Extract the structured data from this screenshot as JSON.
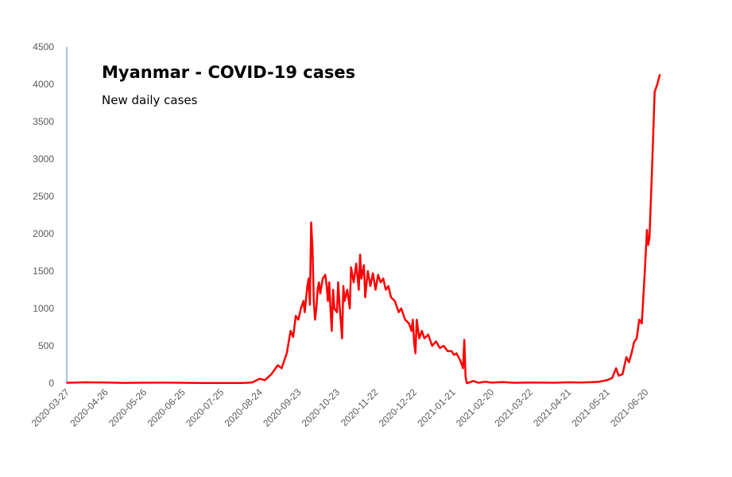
{
  "chart_data": {
    "type": "line",
    "title": "Myanmar - COVID-19 cases",
    "subtitle": "New daily cases",
    "xlabel": "",
    "ylabel": "",
    "ylim": [
      0,
      4500
    ],
    "yticks": [
      0,
      500,
      1000,
      1500,
      2000,
      2500,
      3000,
      3500,
      4000,
      4500
    ],
    "xticks": [
      "2020-03-27",
      "2020-04-26",
      "2020-05-26",
      "2020-06-25",
      "2020-07-25",
      "2020-08-24",
      "2020-09-23",
      "2020-10-23",
      "2020-11-22",
      "2020-12-22",
      "2021-01-21",
      "2021-02-20",
      "2021-03-22",
      "2021-04-21",
      "2021-05-21",
      "2021-06-20"
    ],
    "xlim": [
      "2020-03-27",
      "2021-07-12"
    ],
    "grid": false,
    "legend": "none",
    "series": [
      {
        "color": "#ff0000",
        "points": [
          [
            "2020-03-27",
            5
          ],
          [
            "2020-04-10",
            12
          ],
          [
            "2020-04-26",
            10
          ],
          [
            "2020-05-10",
            4
          ],
          [
            "2020-05-26",
            6
          ],
          [
            "2020-06-10",
            8
          ],
          [
            "2020-06-25",
            5
          ],
          [
            "2020-07-10",
            3
          ],
          [
            "2020-07-25",
            2
          ],
          [
            "2020-08-10",
            3
          ],
          [
            "2020-08-18",
            10
          ],
          [
            "2020-08-24",
            60
          ],
          [
            "2020-08-28",
            40
          ],
          [
            "2020-09-02",
            120
          ],
          [
            "2020-09-07",
            240
          ],
          [
            "2020-09-10",
            200
          ],
          [
            "2020-09-14",
            400
          ],
          [
            "2020-09-17",
            700
          ],
          [
            "2020-09-19",
            620
          ],
          [
            "2020-09-21",
            900
          ],
          [
            "2020-09-23",
            850
          ],
          [
            "2020-09-25",
            1000
          ],
          [
            "2020-09-27",
            1100
          ],
          [
            "2020-09-28",
            950
          ],
          [
            "2020-09-30",
            1300
          ],
          [
            "2020-10-01",
            1400
          ],
          [
            "2020-10-02",
            1050
          ],
          [
            "2020-10-03",
            2150
          ],
          [
            "2020-10-04",
            1800
          ],
          [
            "2020-10-05",
            1100
          ],
          [
            "2020-10-06",
            850
          ],
          [
            "2020-10-07",
            1000
          ],
          [
            "2020-10-08",
            1250
          ],
          [
            "2020-10-09",
            1350
          ],
          [
            "2020-10-10",
            1200
          ],
          [
            "2020-10-12",
            1400
          ],
          [
            "2020-10-14",
            1450
          ],
          [
            "2020-10-15",
            1300
          ],
          [
            "2020-10-16",
            1100
          ],
          [
            "2020-10-17",
            1350
          ],
          [
            "2020-10-18",
            1000
          ],
          [
            "2020-10-19",
            700
          ],
          [
            "2020-10-20",
            1250
          ],
          [
            "2020-10-21",
            1000
          ],
          [
            "2020-10-23",
            950
          ],
          [
            "2020-10-24",
            1350
          ],
          [
            "2020-10-25",
            1050
          ],
          [
            "2020-10-27",
            600
          ],
          [
            "2020-10-28",
            1300
          ],
          [
            "2020-10-29",
            1100
          ],
          [
            "2020-10-31",
            1250
          ],
          [
            "2020-11-02",
            1000
          ],
          [
            "2020-11-03",
            1550
          ],
          [
            "2020-11-05",
            1350
          ],
          [
            "2020-11-07",
            1600
          ],
          [
            "2020-11-09",
            1250
          ],
          [
            "2020-11-10",
            1720
          ],
          [
            "2020-11-11",
            1400
          ],
          [
            "2020-11-13",
            1580
          ],
          [
            "2020-11-14",
            1150
          ],
          [
            "2020-11-16",
            1500
          ],
          [
            "2020-11-18",
            1300
          ],
          [
            "2020-11-20",
            1470
          ],
          [
            "2020-11-22",
            1250
          ],
          [
            "2020-11-24",
            1450
          ],
          [
            "2020-11-26",
            1350
          ],
          [
            "2020-11-28",
            1400
          ],
          [
            "2020-11-30",
            1250
          ],
          [
            "2020-12-02",
            1300
          ],
          [
            "2020-12-04",
            1150
          ],
          [
            "2020-12-07",
            1100
          ],
          [
            "2020-12-10",
            950
          ],
          [
            "2020-12-12",
            1000
          ],
          [
            "2020-12-15",
            850
          ],
          [
            "2020-12-18",
            800
          ],
          [
            "2020-12-20",
            700
          ],
          [
            "2020-12-21",
            850
          ],
          [
            "2020-12-22",
            550
          ],
          [
            "2020-12-23",
            400
          ],
          [
            "2020-12-24",
            850
          ],
          [
            "2020-12-26",
            600
          ],
          [
            "2020-12-28",
            700
          ],
          [
            "2020-12-30",
            600
          ],
          [
            "2021-01-02",
            650
          ],
          [
            "2021-01-05",
            500
          ],
          [
            "2021-01-08",
            560
          ],
          [
            "2021-01-11",
            470
          ],
          [
            "2021-01-14",
            500
          ],
          [
            "2021-01-17",
            430
          ],
          [
            "2021-01-20",
            430
          ],
          [
            "2021-01-22",
            380
          ],
          [
            "2021-01-24",
            400
          ],
          [
            "2021-01-27",
            300
          ],
          [
            "2021-01-29",
            200
          ],
          [
            "2021-01-30",
            580
          ],
          [
            "2021-01-31",
            80
          ],
          [
            "2021-02-01",
            0
          ],
          [
            "2021-02-03",
            10
          ],
          [
            "2021-02-06",
            30
          ],
          [
            "2021-02-10",
            5
          ],
          [
            "2021-02-15",
            20
          ],
          [
            "2021-02-20",
            8
          ],
          [
            "2021-03-01",
            15
          ],
          [
            "2021-03-10",
            5
          ],
          [
            "2021-03-22",
            10
          ],
          [
            "2021-04-01",
            8
          ],
          [
            "2021-04-10",
            6
          ],
          [
            "2021-04-21",
            12
          ],
          [
            "2021-05-01",
            10
          ],
          [
            "2021-05-10",
            15
          ],
          [
            "2021-05-15",
            20
          ],
          [
            "2021-05-21",
            40
          ],
          [
            "2021-05-25",
            70
          ],
          [
            "2021-05-28",
            200
          ],
          [
            "2021-05-30",
            100
          ],
          [
            "2021-06-02",
            120
          ],
          [
            "2021-06-05",
            350
          ],
          [
            "2021-06-07",
            280
          ],
          [
            "2021-06-09",
            400
          ],
          [
            "2021-06-11",
            550
          ],
          [
            "2021-06-13",
            600
          ],
          [
            "2021-06-15",
            850
          ],
          [
            "2021-06-17",
            800
          ],
          [
            "2021-06-19",
            1400
          ],
          [
            "2021-06-21",
            2050
          ],
          [
            "2021-06-22",
            1850
          ],
          [
            "2021-06-23",
            1950
          ],
          [
            "2021-06-25",
            2900
          ],
          [
            "2021-06-27",
            3900
          ],
          [
            "2021-06-29",
            4000
          ],
          [
            "2021-07-01",
            4130
          ]
        ]
      }
    ]
  }
}
